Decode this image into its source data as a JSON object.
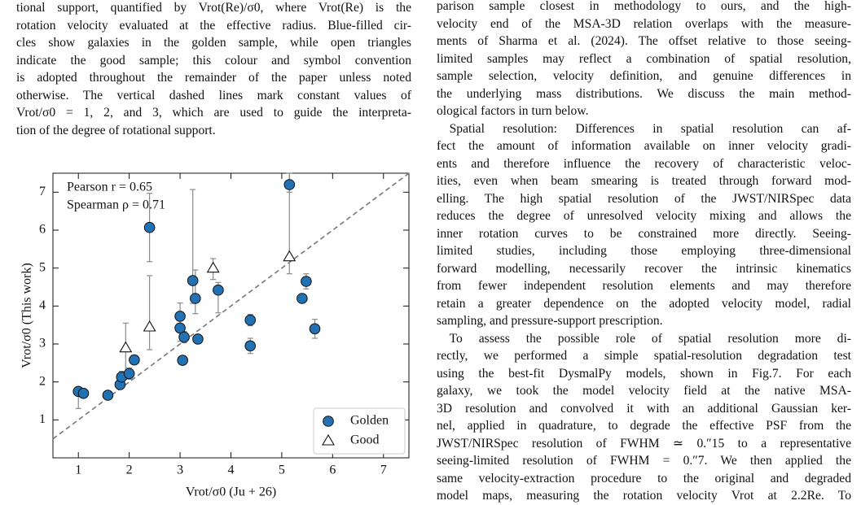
{
  "left_column": {
    "paragraphs": [
      [
        "tional support, quantified by Vrot(Re)/σ0, where Vrot(Re) is the",
        "rotation velocity evaluated at the effective radius. Blue-filled cir-",
        "cles show galaxies in the golden sample, while open triangles",
        "indicate the good sample; this colour and symbol convention",
        "is adopted throughout the remainder of the paper unless noted",
        "otherwise. The vertical dashed lines mark constant values of",
        "Vrot/σ0 = 1, 2, and 3, which are used to guide the interpreta-",
        "tion of the degree of rotational support."
      ]
    ]
  },
  "right_column": {
    "paragraphs": [
      [
        "parison sample closest in methodology to ours, and the high-",
        "velocity end of the MSA-3D relation overlaps with the measure-",
        "ments of Sharma et al. (2024). The offset relative to those seeing-",
        "limited samples may reflect a combination of spatial resolution,",
        "sample selection, velocity definition, and genuine differences in",
        "the underlying mass distributions. We discuss the main method-",
        "ological factors in turn below."
      ],
      [
        "Spatial resolution: Differences in spatial resolution can af-",
        "fect the amount of information available on inner velocity gradi-",
        "ents and therefore influence the recovery of characteristic veloc-",
        "ities, even when beam smearing is treated through forward mod-",
        "elling. The high spatial resolution of the JWST/NIRSpec data",
        "reduces the degree of unresolved velocity mixing and allows the",
        "inner rotation curves to be constrained more directly. Seeing-",
        "limited studies, including those employing three-dimensional",
        "forward modelling, necessarily recover the intrinsic kinematics",
        "from fewer independent resolution elements and may therefore",
        "retain a greater dependence on the adopted velocity model, radial",
        "sampling, and pressure-support prescription."
      ],
      [
        "To assess the possible role of spatial resolution more di-",
        "rectly, we performed a simple spatial-resolution degradation test",
        "using the best-fit DysmalPy models, shown in Fig.7. For each",
        "galaxy, we took the model velocity field at the native MSA-",
        "3D resolution and convolved it with an additional Gaussian ker-",
        "nel, applied in quadrature, to degrade the effective PSF from the",
        "JWST/NIRSpec resolution of FWHM ≃ 0.″15 to a representative",
        "seeing-limited resolution of FWHM = 0.″7. We then applied the",
        "same velocity-extraction procedure to the original and degraded",
        "model maps, measuring the rotation velocity Vrot at 2.2Re. To"
      ]
    ]
  },
  "chart_data": {
    "type": "scatter",
    "xlabel": "Vrot/σ0 (Ju + 26)",
    "ylabel": "Vrot/σ0 (This work)",
    "annotations": [
      "Pearson r = 0.65",
      "Spearman ρ = 0.71"
    ],
    "xlim": [
      0.5,
      7.5
    ],
    "ylim": [
      0,
      7.5
    ],
    "xticks": [
      1,
      2,
      3,
      4,
      5,
      6,
      7
    ],
    "yticks": [
      1,
      2,
      3,
      4,
      5,
      6,
      7
    ],
    "legend": "lower right",
    "series": [
      {
        "name": "Golden",
        "marker": "circle",
        "color": "#2271b3",
        "x": [
          1.0,
          1.1,
          1.58,
          1.82,
          1.85,
          2.0,
          2.1,
          2.4,
          3.0,
          3.0,
          3.05,
          3.08,
          3.25,
          3.3,
          3.35,
          3.75,
          4.38,
          4.38,
          5.15,
          5.4,
          5.48,
          5.65
        ],
        "values": [
          1.75,
          1.7,
          1.65,
          1.93,
          2.13,
          2.22,
          2.58,
          6.07,
          3.73,
          3.42,
          2.57,
          3.18,
          4.67,
          4.2,
          3.13,
          4.42,
          3.63,
          2.95,
          7.2,
          4.2,
          4.65,
          3.4
        ],
        "yerr_low": [
          0.45,
          0.1,
          0.1,
          0.1,
          0.15,
          0.15,
          0.1,
          0.9,
          0.35,
          0.35,
          0.1,
          0.15,
          0.6,
          0.4,
          0.1,
          0.6,
          0.15,
          0.2,
          0.2,
          0.1,
          0.2,
          0.25
        ],
        "yerr_high": [
          0.1,
          0.1,
          0.1,
          0.1,
          0.15,
          0.15,
          0.1,
          0.9,
          0.35,
          0.35,
          0.1,
          0.15,
          2.4,
          0.75,
          0.1,
          0.2,
          0.15,
          0.2,
          0.3,
          0.1,
          0.2,
          0.25
        ]
      },
      {
        "name": "Good",
        "marker": "triangle",
        "color": "#ffffff",
        "x": [
          1.93,
          2.4,
          3.65,
          5.15
        ],
        "values": [
          2.9,
          3.45,
          5.0,
          5.3
        ],
        "yerr_low": [
          0.65,
          0.6,
          0.3,
          0.45
        ],
        "yerr_high": [
          0.65,
          1.35,
          0.25,
          2.2
        ]
      }
    ]
  }
}
